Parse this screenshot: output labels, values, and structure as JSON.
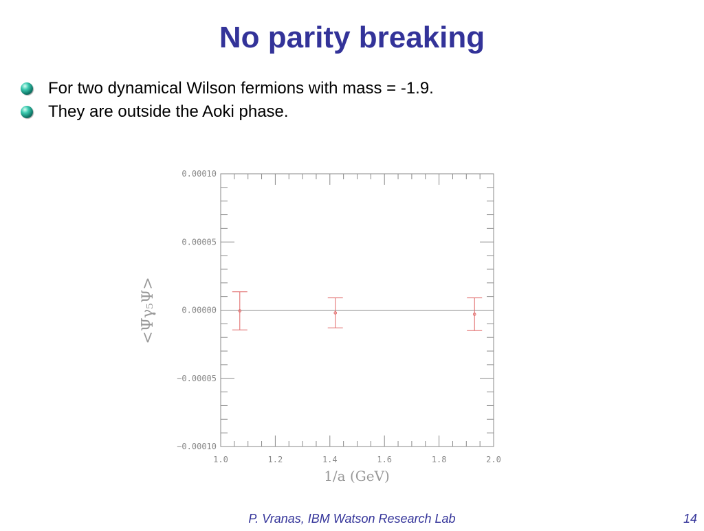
{
  "slide": {
    "title": "No parity breaking",
    "bullets": [
      "For two dynamical Wilson fermions with mass = -1.9.",
      "They are outside the Aoki phase."
    ],
    "footer": "P. Vranas, IBM Watson Research Lab",
    "page_number": "14"
  },
  "colors": {
    "title": "#333399",
    "axis": "#888888",
    "data_points": "#e06666"
  },
  "chart_data": {
    "type": "scatter",
    "title": "",
    "xlabel": "1/a (GeV)",
    "ylabel": "<Ψ̅γ₅Ψ>",
    "xlim": [
      1.0,
      2.0
    ],
    "ylim": [
      -0.0001,
      0.0001
    ],
    "x_ticks": [
      "1.0",
      "1.2",
      "1.4",
      "1.6",
      "1.8",
      "2.0"
    ],
    "y_ticks": [
      "0.00010",
      "0.00005",
      "0.00000",
      "−0.00005",
      "−0.00010"
    ],
    "x_tick_values": [
      1.0,
      1.2,
      1.4,
      1.6,
      1.8,
      2.0
    ],
    "y_tick_values": [
      0.0001,
      5e-05,
      0.0,
      -5e-05,
      -0.0001
    ],
    "zero_line": true,
    "grid": false,
    "series": [
      {
        "x": [
          1.07,
          1.42,
          1.93
        ],
        "y": [
          -5e-07,
          -2e-06,
          -3e-06
        ],
        "yerr": [
          1.4e-05,
          1.1e-05,
          1.2e-05
        ]
      }
    ]
  }
}
